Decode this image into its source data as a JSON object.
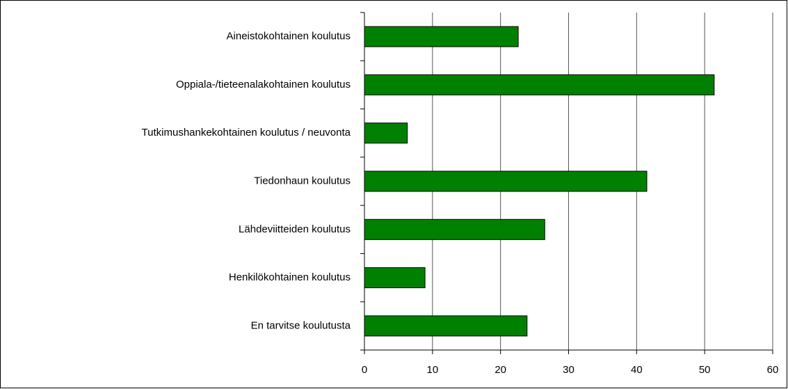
{
  "chart_data": {
    "type": "bar",
    "orientation": "horizontal",
    "categories": [
      "Aineistokohtainen koulutus",
      "Oppiala-/tieteenalakohtainen koulutus",
      "Tutkimushankekohtainen koulutus / neuvonta",
      "Tiedonhaun koulutus",
      "Lähdeviitteiden koulutus",
      "Henkilökohtainen koulutus",
      "En tarvitse koulutusta"
    ],
    "values": [
      22.6,
      51.4,
      6.3,
      41.5,
      26.5,
      8.9,
      23.9
    ],
    "color": "#008000",
    "xlim": [
      0,
      60
    ],
    "xticks": [
      0,
      10,
      20,
      30,
      40,
      50,
      60
    ],
    "grid": true
  }
}
